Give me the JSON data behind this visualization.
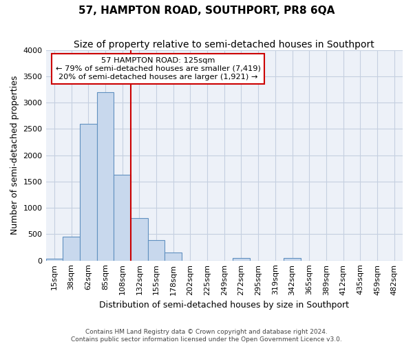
{
  "title": "57, HAMPTON ROAD, SOUTHPORT, PR8 6QA",
  "subtitle": "Size of property relative to semi-detached houses in Southport",
  "xlabel": "Distribution of semi-detached houses by size in Southport",
  "ylabel": "Number of semi-detached properties",
  "footer_line1": "Contains HM Land Registry data © Crown copyright and database right 2024.",
  "footer_line2": "Contains public sector information licensed under the Open Government Licence v3.0.",
  "categories": [
    "15sqm",
    "38sqm",
    "62sqm",
    "85sqm",
    "108sqm",
    "132sqm",
    "155sqm",
    "178sqm",
    "202sqm",
    "225sqm",
    "249sqm",
    "272sqm",
    "295sqm",
    "319sqm",
    "342sqm",
    "365sqm",
    "389sqm",
    "412sqm",
    "435sqm",
    "459sqm",
    "482sqm"
  ],
  "values": [
    30,
    455,
    2600,
    3200,
    1630,
    800,
    390,
    150,
    0,
    0,
    0,
    50,
    0,
    0,
    50,
    0,
    0,
    0,
    0,
    0,
    0
  ],
  "bar_color": "#c8d8ed",
  "bar_edge_color": "#6090c0",
  "highlight_color": "#cc0000",
  "annotation_line1": "57 HAMPTON ROAD: 125sqm",
  "annotation_line2": "← 79% of semi-detached houses are smaller (7,419)",
  "annotation_line3": "20% of semi-detached houses are larger (1,921) →",
  "annotation_box_color": "#cc0000",
  "ylim": [
    0,
    4000
  ],
  "yticks": [
    0,
    500,
    1000,
    1500,
    2000,
    2500,
    3000,
    3500,
    4000
  ],
  "grid_color": "#c5cfe0",
  "bg_color": "#edf1f8",
  "title_fontsize": 11,
  "subtitle_fontsize": 10,
  "axis_fontsize": 9,
  "tick_fontsize": 8
}
